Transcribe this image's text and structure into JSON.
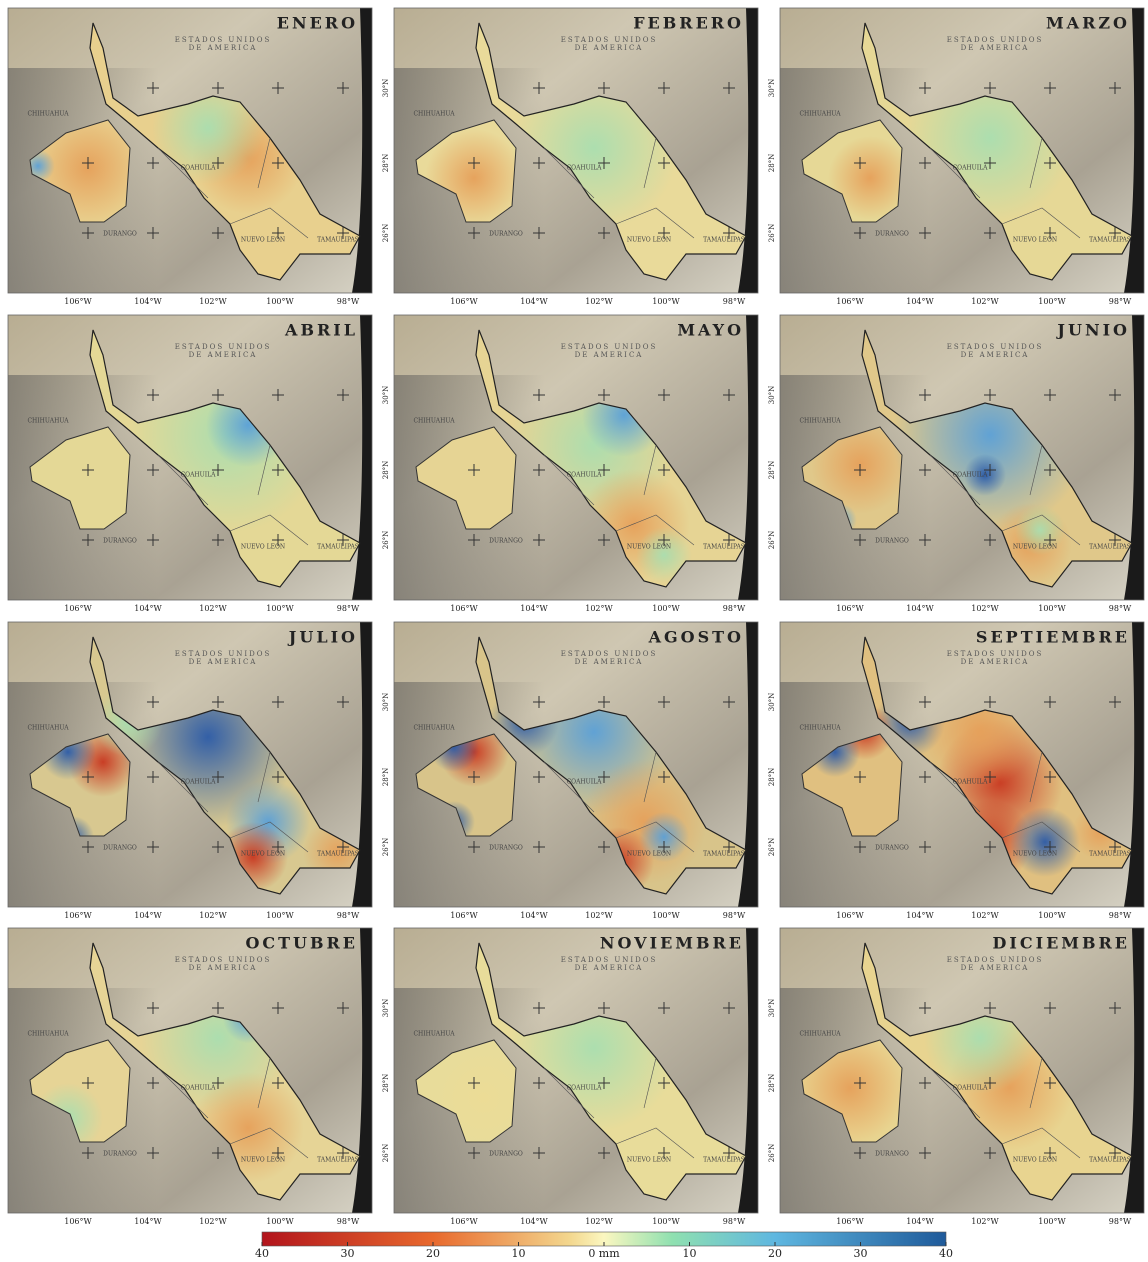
{
  "panels": [
    {
      "title": "ENERO"
    },
    {
      "title": "FEBRERO"
    },
    {
      "title": "MARZO"
    },
    {
      "title": "ABRIL"
    },
    {
      "title": "MAYO"
    },
    {
      "title": "JUNIO"
    },
    {
      "title": "JULIO"
    },
    {
      "title": "AGOSTO"
    },
    {
      "title": "SEPTIEMBRE"
    },
    {
      "title": "OCTUBRE"
    },
    {
      "title": "NOVIEMBRE"
    },
    {
      "title": "DICIEMBRE"
    }
  ],
  "country_label": [
    "ESTADOS UNIDOS",
    "DE AMERICA"
  ],
  "state_labels": [
    "CHIHUAHUA",
    "COAHUILA",
    "DURANGO",
    "NUEVO LEON",
    "TAMAULIPAS"
  ],
  "lon_labels": [
    "106°W",
    "104°W",
    "102°W",
    "100°W",
    "98°W"
  ],
  "lat_labels": [
    "30°N",
    "28°N",
    "26°N"
  ],
  "colorbar": {
    "range": [
      -40,
      40
    ],
    "ticks": [
      {
        "value": -40,
        "label": "40"
      },
      {
        "value": -30,
        "label": "30"
      },
      {
        "value": -20,
        "label": "20"
      },
      {
        "value": -10,
        "label": "10"
      },
      {
        "value": 0,
        "label": "0 mm"
      },
      10,
      20,
      30,
      40
    ]
  }
}
